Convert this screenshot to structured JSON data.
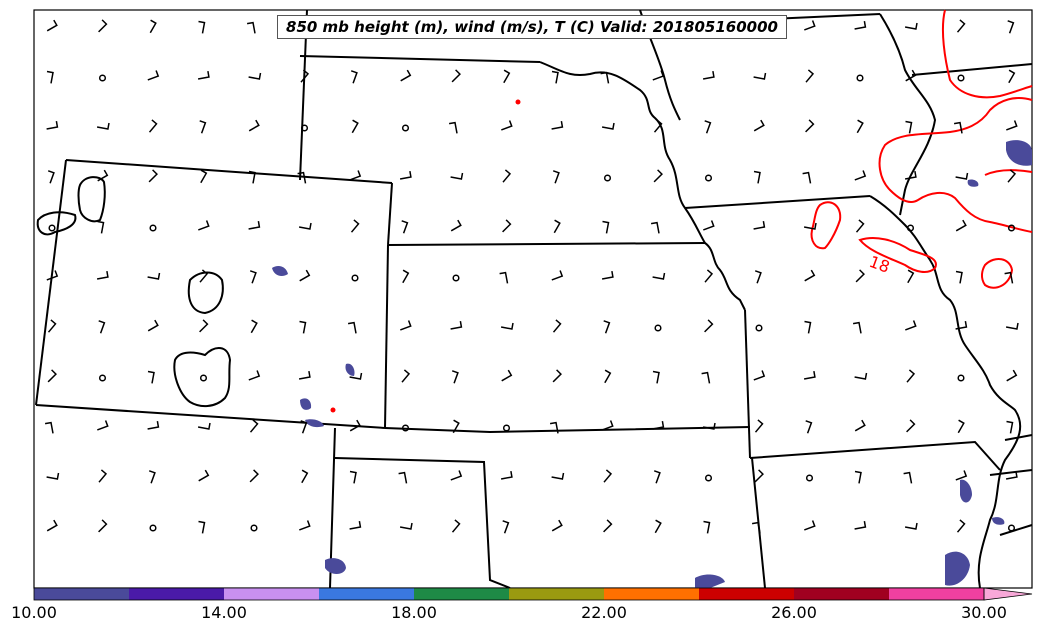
{
  "title": "850 mb height (m), wind (m/s), T (C) Valid: 201805160000",
  "contour_label": "18",
  "colorbar": {
    "ticks": [
      "10.00",
      "14.00",
      "18.00",
      "22.00",
      "26.00",
      "30.00"
    ],
    "colors": [
      "#4a4a9a",
      "#4a1aa8",
      "#c890f0",
      "#3a78e0",
      "#1e8a46",
      "#9a9a10",
      "#ff7000",
      "#cc0000",
      "#a00020",
      "#f040a0"
    ],
    "extend_color": "#f8a8d8"
  },
  "colors": {
    "boundary": "#000000",
    "temperature_contour": "#ff0000",
    "precip_fill": "#4a4a9a"
  }
}
